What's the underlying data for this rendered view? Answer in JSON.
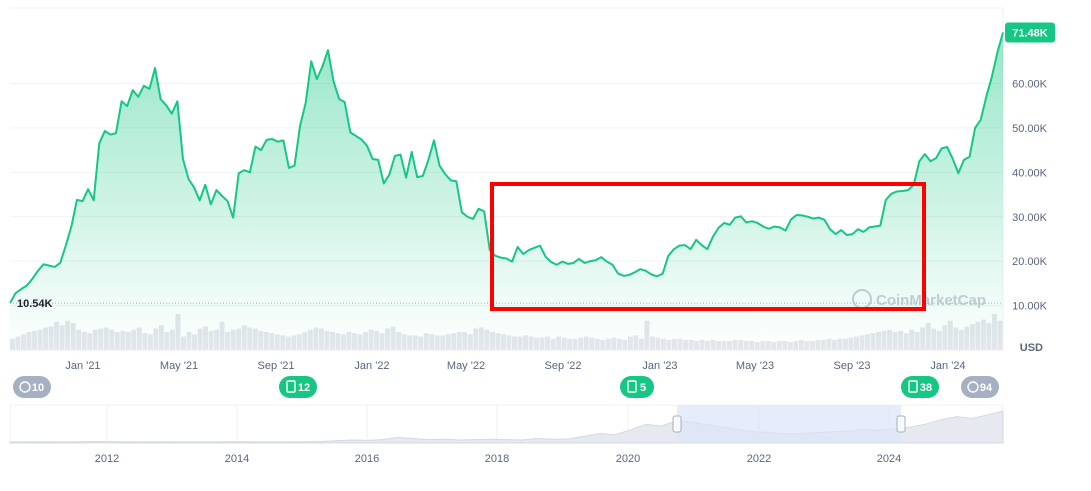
{
  "chart_data": {
    "type": "area",
    "x_ticks": [
      "Jan '21",
      "May '21",
      "Sep '21",
      "Jan '22",
      "May '22",
      "Sep '22",
      "Jan '23",
      "May '23",
      "Sep '23",
      "Jan '24"
    ],
    "y_ticks": [
      10000,
      20000,
      30000,
      40000,
      50000,
      60000
    ],
    "y_tick_labels": [
      "10.00K",
      "20.00K",
      "30.00K",
      "40.00K",
      "50.00K",
      "60.00K"
    ],
    "ylim": [
      0,
      77000
    ],
    "unit_label": "USD",
    "current_price_label": "71.48K",
    "low_label": "10.54K",
    "watermark": "CoinMarketCap",
    "series": [
      {
        "values": [
          10540,
          12800,
          13700,
          14500,
          16000,
          17800,
          19300,
          19000,
          18700,
          19600,
          23500,
          27800,
          33800,
          33500,
          36200,
          33700,
          46500,
          49300,
          48500,
          48800,
          56000,
          54900,
          58500,
          57000,
          59500,
          58800,
          63500,
          56500,
          55100,
          53200,
          56000,
          43000,
          38500,
          36600,
          33700,
          37200,
          32800,
          36000,
          34700,
          33500,
          29800,
          39800,
          40500,
          40000,
          45800,
          45000,
          47300,
          47500,
          46900,
          47200,
          41000,
          41500,
          50500,
          55600,
          65000,
          61000,
          63800,
          67500,
          60500,
          56500,
          55800,
          49000,
          48200,
          47400,
          46000,
          43000,
          42800,
          37500,
          39500,
          43700,
          44000,
          38800,
          44600,
          38900,
          39200,
          42800,
          47200,
          41500,
          39600,
          38200,
          38000,
          31000,
          30000,
          29500,
          31800,
          31200,
          22500,
          21200,
          20800,
          20600,
          19900,
          23200,
          21600,
          22500,
          23000,
          23500,
          21000,
          19800,
          19200,
          19900,
          19400,
          19600,
          20500,
          19600,
          20000,
          20200,
          20900,
          19900,
          19200,
          17200,
          16700,
          16900,
          17500,
          18200,
          17800,
          17000,
          16600,
          17200,
          21200,
          22700,
          23500,
          23600,
          22700,
          24800,
          23600,
          22700,
          25500,
          27500,
          28600,
          28200,
          29800,
          30100,
          28700,
          29000,
          28600,
          27800,
          27300,
          27800,
          27600,
          26900,
          29400,
          30400,
          30300,
          30000,
          29600,
          29800,
          29300,
          27200,
          26100,
          27000,
          25900,
          26100,
          27200,
          26600,
          27600,
          27800,
          28000,
          33800,
          35200,
          35700,
          35800,
          36000,
          37200,
          42500,
          44100,
          42500,
          43200,
          45400,
          45700,
          43000,
          39800,
          42800,
          43500,
          50000,
          51800,
          57000,
          61500,
          67000,
          71480
        ]
      }
    ],
    "volume": [
      1,
      1.2,
      1.4,
      1.6,
      1.7,
      1.8,
      2.0,
      2.1,
      2.5,
      2.2,
      2.6,
      2.4,
      1.8,
      1.6,
      1.5,
      1.8,
      1.9,
      2.0,
      1.8,
      1.6,
      1.7,
      1.6,
      1.8,
      2.0,
      1.5,
      1.4,
      1.9,
      2.2,
      1.6,
      1.8,
      3.2,
      1.2,
      1.6,
      1.4,
      1.9,
      2.1,
      1.7,
      1.8,
      2.5,
      1.6,
      1.8,
      1.9,
      2.2,
      2.0,
      1.9,
      1.7,
      1.6,
      1.5,
      1.4,
      1.3,
      1.2,
      1.3,
      1.4,
      1.6,
      1.8,
      2.0,
      1.9,
      1.7,
      1.6,
      1.5,
      1.4,
      1.6,
      1.5,
      1.4,
      1.6,
      1.8,
      1.7,
      1.5,
      1.9,
      2.1,
      1.6,
      1.4,
      1.3,
      1.3,
      1.2,
      1.5,
      1.4,
      1.3,
      1.3,
      1.4,
      1.5,
      1.6,
      1.6,
      1.4,
      1.9,
      2.0,
      1.8,
      1.6,
      1.5,
      1.4,
      1.3,
      1.2,
      1.2,
      1.3,
      1.2,
      1.1,
      1.1,
      1.2,
      1.0,
      1.2,
      1.1,
      1.0,
      1.0,
      1.1,
      1.2,
      1.1,
      1.0,
      0.9,
      1.0,
      1.1,
      1.0,
      0.9,
      1.2,
      1.3,
      1.0,
      2.6,
      1.2,
      1.1,
      1.0,
      0.9,
      1.0,
      1.0,
      0.9,
      0.9,
      0.8,
      0.9,
      0.8,
      0.9,
      0.8,
      0.8,
      0.8,
      0.9,
      0.9,
      0.8,
      0.8,
      0.7,
      0.8,
      0.8,
      0.7,
      0.8,
      0.8,
      0.7,
      0.8,
      0.9,
      0.8,
      0.8,
      0.9,
      0.9,
      1.0,
      0.9,
      1.0,
      1.0,
      1.1,
      1.2,
      1.3,
      1.4,
      1.5,
      1.6,
      1.7,
      1.8,
      1.6,
      1.7,
      1.5,
      1.8,
      1.6,
      2.0,
      2.4,
      1.9,
      1.7,
      2.2,
      2.6,
      2.0,
      1.8,
      2.1,
      2.3,
      2.5,
      2.7,
      2.4,
      3.2,
      2.6
    ],
    "events": [
      {
        "label": "10",
        "icon": "history-icon"
      },
      {
        "label": "12",
        "icon": "document-icon"
      },
      {
        "label": "5",
        "icon": "document-icon"
      },
      {
        "label": "38",
        "icon": "document-icon"
      },
      {
        "label": "94",
        "icon": "clock-icon"
      }
    ],
    "navigator": {
      "x_ticks": [
        "2012",
        "2014",
        "2016",
        "2018",
        "2020",
        "2022",
        "2024"
      ],
      "values": [
        0.3,
        0.3,
        0.35,
        0.3,
        0.3,
        0.4,
        0.4,
        0.35,
        0.3,
        0.3,
        0.35,
        0.3,
        0.3,
        0.3,
        0.35,
        0.35,
        0.3,
        0.3,
        0.3,
        0.35,
        0.4,
        0.6,
        0.8,
        0.7,
        0.9,
        1.5,
        1.2,
        0.9,
        1.0,
        0.8,
        0.9,
        1.0,
        0.9,
        0.8,
        1.2,
        1.0,
        1.1,
        1.8,
        2.5,
        2.2,
        3.5,
        5.0,
        4.5,
        6.0,
        5.5,
        4.8,
        4.2,
        3.5,
        3.0,
        2.8,
        2.5,
        2.6,
        2.8,
        3.0,
        3.2,
        3.5,
        3.4,
        3.8,
        4.2,
        5.0,
        6.2,
        7.0,
        6.5,
        7.5,
        8.5
      ]
    },
    "colors": {
      "line": "#16c784",
      "area_top": "#16c784",
      "grid": "#eff2f5",
      "axis_text": "#58667e",
      "volume": "#e3e6eb",
      "badge_green": "#16c784",
      "badge_gray": "#a6b0c3",
      "highlight_box": "#ff0000",
      "nav_selection": "#dbe4f6"
    },
    "grid": true
  }
}
